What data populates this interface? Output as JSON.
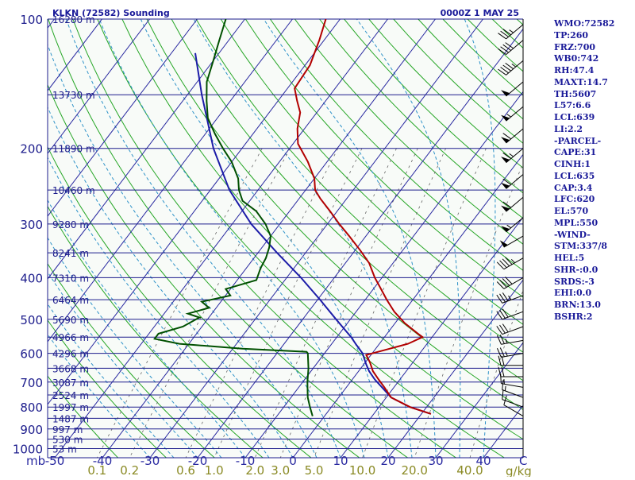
{
  "header": {
    "station": "KLKN (72582) Sounding",
    "time": "0000Z  1 MAY 25"
  },
  "indices": [
    "WMO:72582",
    "TP:260",
    "FRZ:700",
    "WB0:742",
    "RH:47.4",
    "MAXT:14.7",
    "TH:5607",
    "L57:6.6",
    "LCL:639",
    "LI:2.2",
    "-PARCEL-",
    "CAPE:31",
    "CINH:1",
    "LCL:635",
    "CAP:3.4",
    "LFC:620",
    "EL:570",
    "MPL:550",
    "-WIND-",
    "STM:337/8",
    "HEL:5",
    "SHR-:0.0",
    "SRDS:-3",
    "EHI:0.0",
    "BRN:13.0",
    "BSHR:2"
  ],
  "colors": {
    "background": "#f8fbf8",
    "isobar": "#1c1c8c",
    "isotherm": "#2828a0",
    "dry_adiabat": "#26a626",
    "moist_adiabat": "#2e92c8",
    "mixing_ratio": "#666666",
    "temperature": "#b20000",
    "dewpoint": "#005000",
    "parcel": "#1c1ca8",
    "label": "#1a1a99",
    "mixing_label": "#8a8a24",
    "wind": "#000000"
  },
  "chart_data": {
    "type": "skew-t",
    "pressure_ticks": [
      100,
      200,
      300,
      400,
      500,
      600,
      700,
      800,
      900,
      1000
    ],
    "pressure_unit": "mb",
    "temperature_ticks": [
      -50,
      -40,
      -30,
      -20,
      -10,
      0,
      10,
      20,
      30,
      40
    ],
    "temperature_axis_end_label": "C",
    "mixing_ratio_labels": [
      "0.1",
      "0.2",
      "0.6",
      "1.0",
      "2.0",
      "3.0",
      "5.0",
      "10.0",
      "20.0",
      "40.0"
    ],
    "mixing_ratio_unit": "g/kg",
    "height_levels": [
      {
        "p": 100,
        "label": "16280 m"
      },
      {
        "p": 150,
        "label": "13730 m"
      },
      {
        "p": 200,
        "label": "11890 m"
      },
      {
        "p": 250,
        "label": "10460 m"
      },
      {
        "p": 300,
        "label": "9280 m"
      },
      {
        "p": 350,
        "label": "8241 m"
      },
      {
        "p": 400,
        "label": "7310 m"
      },
      {
        "p": 450,
        "label": "6464 m"
      },
      {
        "p": 500,
        "label": "5690 m"
      },
      {
        "p": 550,
        "label": "4966 m"
      },
      {
        "p": 600,
        "label": "4296 m"
      },
      {
        "p": 650,
        "label": "3668 m"
      },
      {
        "p": 700,
        "label": "3087 m"
      },
      {
        "p": 750,
        "label": "2524 m"
      },
      {
        "p": 800,
        "label": "1997 m"
      },
      {
        "p": 850,
        "label": "1487 m"
      },
      {
        "p": 900,
        "label": "997 m"
      },
      {
        "p": 950,
        "label": "530 m"
      },
      {
        "p": 1000,
        "label": "53 m"
      }
    ],
    "temperature_profile": [
      [
        830,
        22
      ],
      [
        800,
        16.5
      ],
      [
        760,
        11
      ],
      [
        720,
        8
      ],
      [
        690,
        5.5
      ],
      [
        660,
        3
      ],
      [
        630,
        1
      ],
      [
        605,
        -1
      ],
      [
        590,
        2
      ],
      [
        570,
        6
      ],
      [
        550,
        8
      ],
      [
        540,
        6.5
      ],
      [
        510,
        2
      ],
      [
        480,
        -2
      ],
      [
        450,
        -5.5
      ],
      [
        420,
        -9
      ],
      [
        400,
        -11.5
      ],
      [
        370,
        -15
      ],
      [
        345,
        -19
      ],
      [
        320,
        -23.5
      ],
      [
        300,
        -27.5
      ],
      [
        280,
        -31.5
      ],
      [
        262,
        -35.5
      ],
      [
        250,
        -38
      ],
      [
        235,
        -40
      ],
      [
        215,
        -44
      ],
      [
        195,
        -49
      ],
      [
        180,
        -51.5
      ],
      [
        165,
        -53.5
      ],
      [
        155,
        -56
      ],
      [
        145,
        -58.5
      ],
      [
        128,
        -59
      ],
      [
        112,
        -61
      ],
      [
        100,
        -63
      ]
    ],
    "dewpoint_profile": [
      [
        840,
        -2.5
      ],
      [
        800,
        -4.5
      ],
      [
        760,
        -6.5
      ],
      [
        700,
        -9
      ],
      [
        650,
        -11
      ],
      [
        600,
        -13.5
      ],
      [
        595,
        -14
      ],
      [
        585,
        -28
      ],
      [
        570,
        -42
      ],
      [
        555,
        -48
      ],
      [
        540,
        -48
      ],
      [
        520,
        -44
      ],
      [
        495,
        -42
      ],
      [
        485,
        -45
      ],
      [
        470,
        -41.5
      ],
      [
        455,
        -44
      ],
      [
        440,
        -39
      ],
      [
        425,
        -41
      ],
      [
        405,
        -36
      ],
      [
        380,
        -37
      ],
      [
        360,
        -37.5
      ],
      [
        340,
        -38.5
      ],
      [
        320,
        -40
      ],
      [
        300,
        -43
      ],
      [
        280,
        -47
      ],
      [
        265,
        -51.5
      ],
      [
        250,
        -54
      ],
      [
        235,
        -56
      ],
      [
        215,
        -60
      ],
      [
        200,
        -64
      ],
      [
        185,
        -68
      ],
      [
        170,
        -72
      ],
      [
        155,
        -75
      ],
      [
        140,
        -78
      ],
      [
        125,
        -80
      ],
      [
        112,
        -82
      ],
      [
        100,
        -84
      ]
    ],
    "parcel_profile": [
      [
        830,
        22
      ],
      [
        800,
        16.5
      ],
      [
        760,
        11
      ],
      [
        720,
        7.5
      ],
      [
        690,
        4.7
      ],
      [
        660,
        2.2
      ],
      [
        635,
        0.4
      ],
      [
        600,
        -2
      ],
      [
        570,
        -5
      ],
      [
        550,
        -7
      ],
      [
        500,
        -13
      ],
      [
        450,
        -19.5
      ],
      [
        400,
        -27
      ],
      [
        350,
        -36
      ],
      [
        300,
        -46
      ],
      [
        250,
        -56
      ],
      [
        200,
        -66
      ],
      [
        150,
        -77
      ],
      [
        120,
        -85
      ]
    ],
    "wind_barbs": [
      {
        "p": 840,
        "dir": 300,
        "kt": 10
      },
      {
        "p": 800,
        "dir": 290,
        "kt": 10
      },
      {
        "p": 760,
        "dir": 290,
        "kt": 15
      },
      {
        "p": 720,
        "dir": 280,
        "kt": 15
      },
      {
        "p": 680,
        "dir": 270,
        "kt": 20
      },
      {
        "p": 640,
        "dir": 270,
        "kt": 20
      },
      {
        "p": 600,
        "dir": 260,
        "kt": 25
      },
      {
        "p": 560,
        "dir": 260,
        "kt": 25
      },
      {
        "p": 520,
        "dir": 250,
        "kt": 30
      },
      {
        "p": 480,
        "dir": 250,
        "kt": 30
      },
      {
        "p": 440,
        "dir": 250,
        "kt": 35
      },
      {
        "p": 400,
        "dir": 240,
        "kt": 40
      },
      {
        "p": 360,
        "dir": 240,
        "kt": 45
      },
      {
        "p": 320,
        "dir": 240,
        "kt": 50
      },
      {
        "p": 290,
        "dir": 230,
        "kt": 55
      },
      {
        "p": 260,
        "dir": 230,
        "kt": 60
      },
      {
        "p": 230,
        "dir": 230,
        "kt": 60
      },
      {
        "p": 200,
        "dir": 230,
        "kt": 65
      },
      {
        "p": 180,
        "dir": 230,
        "kt": 60
      },
      {
        "p": 160,
        "dir": 230,
        "kt": 55
      },
      {
        "p": 140,
        "dir": 230,
        "kt": 50
      },
      {
        "p": 125,
        "dir": 230,
        "kt": 45
      },
      {
        "p": 112,
        "dir": 230,
        "kt": 40
      },
      {
        "p": 103,
        "dir": 230,
        "kt": 35
      }
    ]
  }
}
